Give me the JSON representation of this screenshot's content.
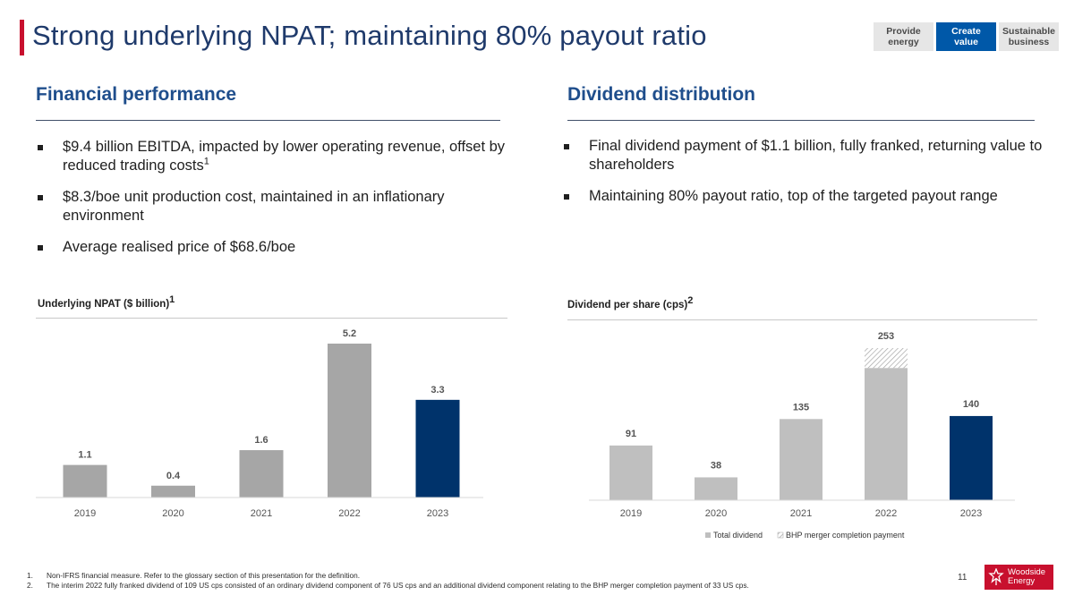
{
  "header": {
    "title": "Strong underlying NPAT; maintaining 80% payout ratio",
    "tabs": [
      {
        "line1": "Provide",
        "line2": "energy",
        "active": false
      },
      {
        "line1": "Create",
        "line2": "value",
        "active": true
      },
      {
        "line1": "Sustainable",
        "line2": "business",
        "active": false
      }
    ]
  },
  "left": {
    "heading": "Financial performance",
    "bullets": [
      {
        "text": "$9.4 billion EBITDA, impacted by lower operating revenue, offset by reduced trading costs",
        "sup": "1"
      },
      {
        "text": "$8.3/boe unit production cost, maintained in an inflationary environment",
        "sup": ""
      },
      {
        "text": "Average realised price of $68.6/boe",
        "sup": ""
      }
    ]
  },
  "right": {
    "heading": "Dividend distribution",
    "bullets": [
      {
        "text": "Final dividend payment of $1.1 billion, fully franked, returning value to shareholders",
        "sup": ""
      },
      {
        "text": "Maintaining 80% payout ratio, top of the targeted payout range",
        "sup": ""
      }
    ]
  },
  "chart_data": [
    {
      "type": "bar",
      "title": "Underlying NPAT ($ billion)",
      "title_sup": "1",
      "categories": [
        "2019",
        "2020",
        "2021",
        "2022",
        "2023"
      ],
      "values": [
        1.1,
        0.4,
        1.6,
        5.2,
        3.3
      ],
      "labels": [
        "1.1",
        "0.4",
        "1.6",
        "5.2",
        "3.3"
      ],
      "highlight_index": 4,
      "ylim": [
        0,
        5.2
      ],
      "colors": {
        "bar": "#a6a6a6",
        "highlight": "#00336b"
      }
    },
    {
      "type": "bar",
      "title": "Dividend per share (cps)",
      "title_sup": "2",
      "categories": [
        "2019",
        "2020",
        "2021",
        "2022",
        "2023"
      ],
      "series": [
        {
          "name": "Total dividend",
          "values": [
            91,
            38,
            135,
            220,
            140
          ]
        },
        {
          "name": "BHP merger completion payment",
          "values": [
            0,
            0,
            0,
            33,
            0
          ]
        }
      ],
      "labels": [
        "91",
        "38",
        "135",
        "253",
        "140"
      ],
      "highlight_index": 4,
      "ylim": [
        0,
        253
      ],
      "legend": [
        "Total dividend",
        "BHP merger completion payment"
      ],
      "colors": {
        "bar": "#bfbfbf",
        "highlight": "#00336b",
        "hatch": "#a6a6a6"
      }
    }
  ],
  "footnotes": [
    {
      "num": "1.",
      "text": "Non-IFRS financial measure. Refer to the glossary section of this presentation for the definition."
    },
    {
      "num": "2.",
      "text": "The interim 2022 fully franked dividend of 109 US cps consisted of an ordinary dividend component of 76 US cps and an additional dividend component relating to the BHP merger completion payment of 33 US cps."
    }
  ],
  "page_number": "11",
  "logo": {
    "line1": "Woodside",
    "line2": "Energy"
  }
}
